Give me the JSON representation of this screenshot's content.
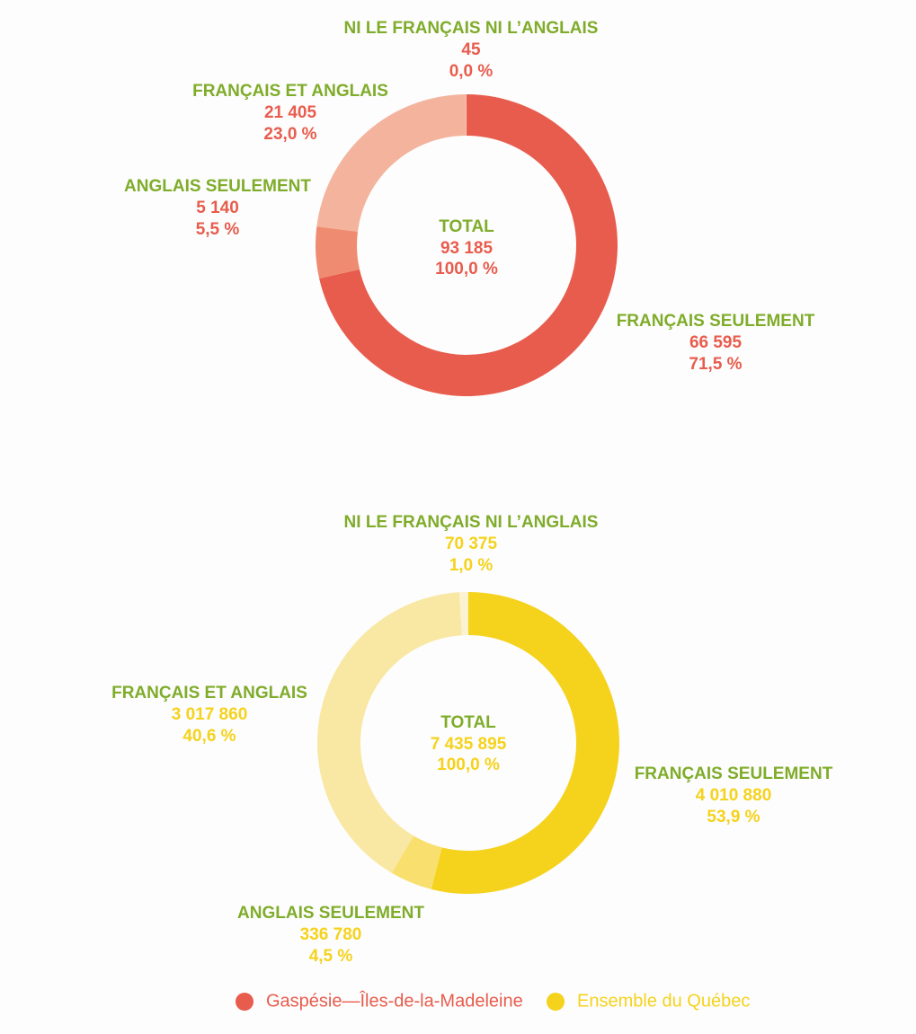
{
  "chart_data": [
    {
      "type": "pie",
      "name": "Gaspésie—Îles-de-la-Madeleine",
      "color": "#e85c4d",
      "categories": [
        "FRANÇAIS SEULEMENT",
        "ANGLAIS SEULEMENT",
        "FRANÇAIS ET ANGLAIS",
        "NI LE FRANÇAIS NI L’ANGLAIS"
      ],
      "values": [
        66595,
        5140,
        21405,
        45
      ],
      "value_labels": [
        "66 595",
        "5 140",
        "21 405",
        "45"
      ],
      "percents": [
        71.5,
        5.5,
        23.0,
        0.0
      ],
      "percent_labels": [
        "71,5 %",
        "5,5 %",
        "23,0 %",
        "0,0 %"
      ],
      "colors": [
        "#e85c4d",
        "#ef8b70",
        "#f4b39d",
        "#f8d6cb"
      ],
      "total_title": "TOTAL",
      "total": 93185,
      "total_label": "93 185",
      "total_percent": 100,
      "total_percent_label": "100,0 %"
    },
    {
      "type": "pie",
      "name": "Ensemble du Québec",
      "color": "#f5d21c",
      "categories": [
        "FRANÇAIS SEULEMENT",
        "ANGLAIS SEULEMENT",
        "FRANÇAIS ET ANGLAIS",
        "NI LE FRANÇAIS NI L’ANGLAIS"
      ],
      "values": [
        4010880,
        336780,
        3017860,
        70375
      ],
      "value_labels": [
        "4 010 880",
        "336 780",
        "3 017 860",
        "70 375"
      ],
      "percents": [
        53.9,
        4.5,
        40.6,
        1.0
      ],
      "percent_labels": [
        "53,9 %",
        "4,5 %",
        "40,6 %",
        "1,0 %"
      ],
      "colors": [
        "#f5d21c",
        "#f8df6e",
        "#f9e8a3",
        "#fbf2d2"
      ],
      "total_title": "TOTAL",
      "total": 7435895,
      "total_label": "7 435 895",
      "total_percent": 100,
      "total_percent_label": "100,0 %"
    }
  ]
}
